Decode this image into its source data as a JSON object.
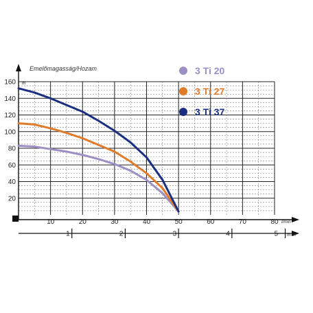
{
  "chart_data": {
    "type": "line",
    "title": "Emelőmagasság/Hozam",
    "ylabel_unit": "m",
    "xlabel_unit": "l/min",
    "x2label_unit": "m³/h",
    "xlim": [
      0,
      80
    ],
    "ylim": [
      0,
      160
    ],
    "x_ticks": [
      "10",
      "20",
      "30",
      "40",
      "50",
      "60",
      "70",
      "80"
    ],
    "y_ticks": [
      "20",
      "40",
      "60",
      "80",
      "100",
      "120",
      "140",
      "160"
    ],
    "x2_ticks": [
      "1",
      "2",
      "3",
      "4",
      "5"
    ],
    "x2_tick_positions_lmin": [
      16.67,
      33.33,
      50,
      66.67,
      83.33
    ],
    "grid": true,
    "legend_position": "top-right",
    "series": [
      {
        "name": "3 Ti 20",
        "color": "#9b8fc4",
        "points": [
          [
            0,
            83
          ],
          [
            5,
            82
          ],
          [
            10,
            79
          ],
          [
            15,
            76
          ],
          [
            20,
            72
          ],
          [
            25,
            67
          ],
          [
            30,
            61
          ],
          [
            35,
            53
          ],
          [
            40,
            42
          ],
          [
            45,
            26
          ],
          [
            50,
            4
          ]
        ]
      },
      {
        "name": "3 Ti 27",
        "color": "#e07b2a",
        "points": [
          [
            0,
            110
          ],
          [
            5,
            108.5
          ],
          [
            10,
            104
          ],
          [
            15,
            98.5
          ],
          [
            20,
            92
          ],
          [
            25,
            84
          ],
          [
            30,
            76
          ],
          [
            35,
            64
          ],
          [
            40,
            50
          ],
          [
            45,
            32
          ],
          [
            50,
            4
          ]
        ]
      },
      {
        "name": "3 Ti 37",
        "color": "#1b2f80",
        "points": [
          [
            0,
            152
          ],
          [
            5,
            147
          ],
          [
            10,
            140
          ],
          [
            15,
            132
          ],
          [
            20,
            124
          ],
          [
            25,
            113
          ],
          [
            30,
            101
          ],
          [
            35,
            87
          ],
          [
            40,
            69
          ],
          [
            45,
            42
          ],
          [
            50,
            4
          ]
        ]
      }
    ]
  }
}
